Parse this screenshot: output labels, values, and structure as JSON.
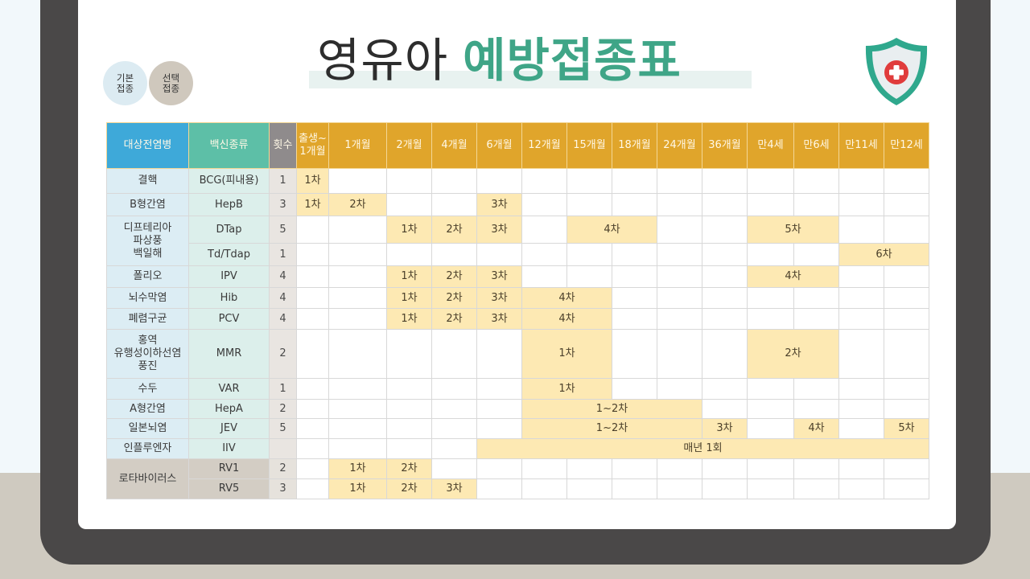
{
  "title": {
    "light": "영유아",
    "bold": "예방접종표"
  },
  "legend": [
    {
      "label_line1": "기본",
      "label_line2": "접종",
      "type": "basic",
      "color": "#dcebf2"
    },
    {
      "label_line1": "선택",
      "label_line2": "접종",
      "type": "optional",
      "color": "#cfc8bd"
    }
  ],
  "colors": {
    "header_disease": "#3ea9d9",
    "header_vaccine": "#5dbfa7",
    "header_count": "#8f8b8c",
    "header_age": "#e0a52b",
    "dose_cell": "#fde9b3",
    "title_accent": "#3fa587"
  },
  "table": {
    "headers": {
      "disease": "대상전염병",
      "vaccine": "백신종류",
      "count": "횟수",
      "ages": [
        "출생~ 1개월",
        "1개월",
        "2개월",
        "4개월",
        "6개월",
        "12개월",
        "15개월",
        "18개월",
        "24개월",
        "36개월",
        "만4세",
        "만6세",
        "만11세",
        "만12세"
      ]
    },
    "rows": [
      {
        "disease": "결핵",
        "vaccine": "BCG(피내용)",
        "count": "1",
        "doses": [
          {
            "col": 0,
            "span": 1,
            "label": "1차"
          }
        ]
      },
      {
        "disease": "B형간염",
        "vaccine": "HepB",
        "count": "3",
        "doses": [
          {
            "col": 0,
            "span": 1,
            "label": "1차"
          },
          {
            "col": 1,
            "span": 1,
            "label": "2차"
          },
          {
            "col": 4,
            "span": 1,
            "label": "3차"
          }
        ]
      },
      {
        "disease": "디프테리아 파상풍 백일해",
        "vaccine": "DTap",
        "count": "5",
        "doses": [
          {
            "col": 2,
            "span": 1,
            "label": "1차"
          },
          {
            "col": 3,
            "span": 1,
            "label": "2차"
          },
          {
            "col": 4,
            "span": 1,
            "label": "3차"
          },
          {
            "col": 6,
            "span": 2,
            "label": "4차"
          },
          {
            "col": 10,
            "span": 2,
            "label": "5차"
          }
        ]
      },
      {
        "disease": "",
        "vaccine": "Td/Tdap",
        "count": "1",
        "doses": [
          {
            "col": 12,
            "span": 2,
            "label": "6차"
          }
        ]
      },
      {
        "disease": "폴리오",
        "vaccine": "IPV",
        "count": "4",
        "doses": [
          {
            "col": 2,
            "span": 1,
            "label": "1차"
          },
          {
            "col": 3,
            "span": 1,
            "label": "2차"
          },
          {
            "col": 4,
            "span": 1,
            "label": "3차"
          },
          {
            "col": 10,
            "span": 2,
            "label": "4차"
          }
        ]
      },
      {
        "disease": "뇌수막염",
        "vaccine": "Hib",
        "count": "4",
        "doses": [
          {
            "col": 2,
            "span": 1,
            "label": "1차"
          },
          {
            "col": 3,
            "span": 1,
            "label": "2차"
          },
          {
            "col": 4,
            "span": 1,
            "label": "3차"
          },
          {
            "col": 5,
            "span": 2,
            "label": "4차"
          }
        ]
      },
      {
        "disease": "폐렴구균",
        "vaccine": "PCV",
        "count": "4",
        "doses": [
          {
            "col": 2,
            "span": 1,
            "label": "1차"
          },
          {
            "col": 3,
            "span": 1,
            "label": "2차"
          },
          {
            "col": 4,
            "span": 1,
            "label": "3차"
          },
          {
            "col": 5,
            "span": 2,
            "label": "4차"
          }
        ]
      },
      {
        "disease": "홍역 유행성이하선염 풍진",
        "vaccine": "MMR",
        "count": "2",
        "doses": [
          {
            "col": 5,
            "span": 2,
            "label": "1차"
          },
          {
            "col": 10,
            "span": 2,
            "label": "2차"
          }
        ]
      },
      {
        "disease": "수두",
        "vaccine": "VAR",
        "count": "1",
        "doses": [
          {
            "col": 5,
            "span": 2,
            "label": "1차"
          }
        ]
      },
      {
        "disease": "A형간염",
        "vaccine": "HepA",
        "count": "2",
        "doses": [
          {
            "col": 5,
            "span": 4,
            "label": "1~2차"
          }
        ]
      },
      {
        "disease": "일본뇌염",
        "vaccine": "JEV",
        "count": "5",
        "doses": [
          {
            "col": 5,
            "span": 4,
            "label": "1~2차"
          },
          {
            "col": 9,
            "span": 1,
            "label": "3차"
          },
          {
            "col": 11,
            "span": 1,
            "label": "4차"
          },
          {
            "col": 13,
            "span": 1,
            "label": "5차"
          }
        ]
      },
      {
        "disease": "인플루엔자",
        "vaccine": "IIV",
        "count": "",
        "doses": [
          {
            "col": 4,
            "span": 10,
            "label": "매년 1회"
          }
        ]
      },
      {
        "disease": "로타바이러스",
        "vaccine": "RV1",
        "count": "2",
        "optional": true,
        "doses": [
          {
            "col": 1,
            "span": 1,
            "label": "1차"
          },
          {
            "col": 2,
            "span": 1,
            "label": "2차"
          }
        ]
      },
      {
        "disease": "",
        "vaccine": "RV5",
        "count": "3",
        "optional": true,
        "doses": [
          {
            "col": 1,
            "span": 1,
            "label": "1차"
          },
          {
            "col": 2,
            "span": 1,
            "label": "2차"
          },
          {
            "col": 3,
            "span": 1,
            "label": "3차"
          }
        ]
      }
    ]
  },
  "icons": {
    "shield": "shield-medical-cross-icon"
  }
}
